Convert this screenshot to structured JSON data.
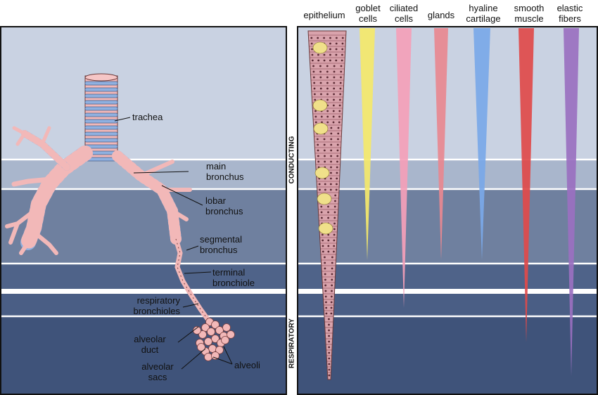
{
  "headers": [
    "epithelium",
    "goblet\ncells",
    "ciliated\ncells",
    "glands",
    "hyaline\ncartilage",
    "smooth\nmuscle",
    "elastic\nfibers"
  ],
  "labels": {
    "trachea": "trachea",
    "main_bronchus": "main\nbronchus",
    "lobar_bronchus": "lobar\nbronchus",
    "segmental_bronchus": "segmental\nbronchus",
    "terminal_bronchiole": "terminal\nbronchiole",
    "respiratory_bronchioles": "respiratory\nbronchioles",
    "alveolar_duct": "alveolar\nduct",
    "alveolar_sacs": "alveolar\nsacs",
    "alveoli": "alveoli"
  },
  "regions": {
    "conducting": "CONDUCTING",
    "respiratory": "RESPIRATORY"
  },
  "colors": {
    "goblet": "#f4e86a",
    "ciliated": "#f4a0b8",
    "glands": "#e88890",
    "cartilage": "#7aa8e8",
    "muscle": "#e04a4a",
    "elastic": "#9a70c0",
    "airway_pink": "#f2b8b8",
    "airway_blue": "#8fb0e0"
  }
}
